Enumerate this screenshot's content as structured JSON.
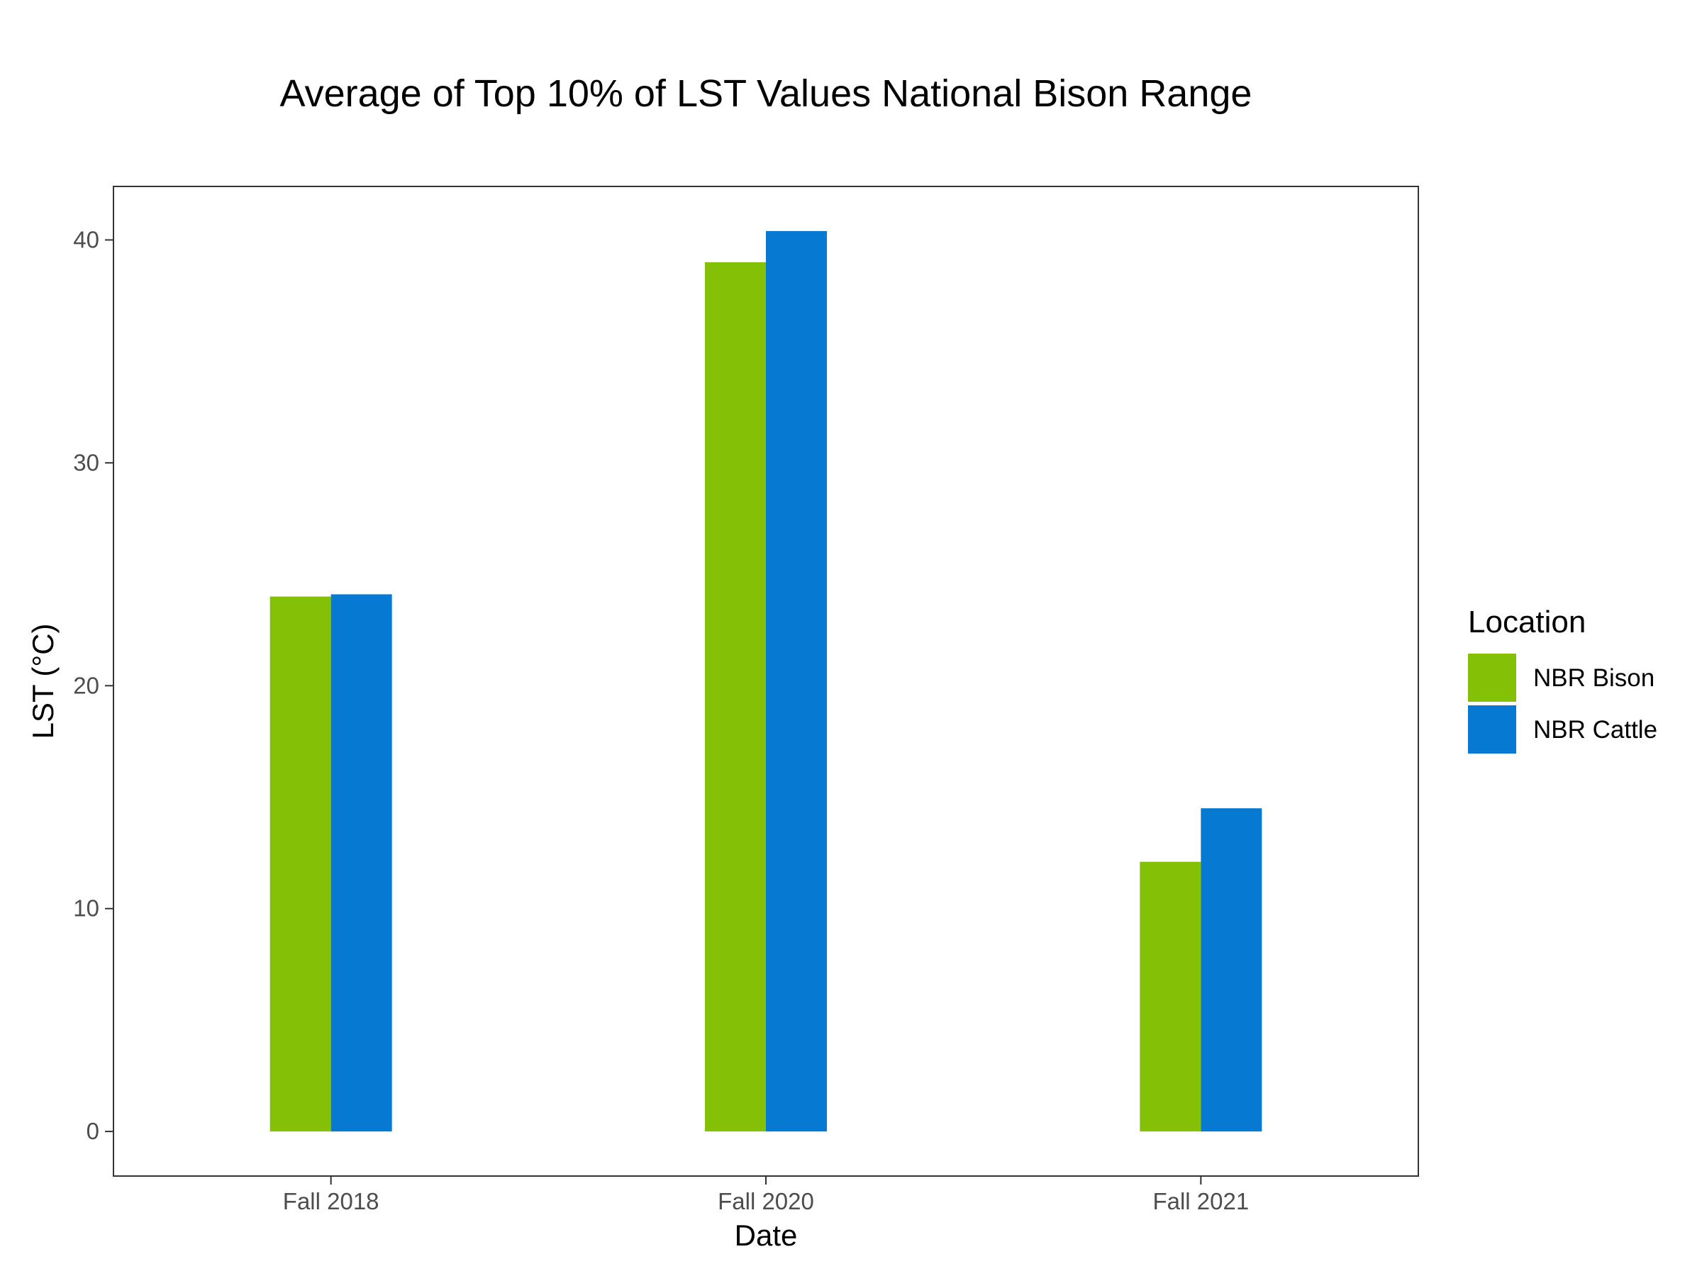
{
  "chart_data": {
    "type": "bar",
    "title": "Average of Top 10% of LST Values National Bison Range",
    "xlabel": "Date",
    "ylabel": "LST (°C)",
    "categories": [
      "Fall 2018",
      "Fall 2020",
      "Fall 2021"
    ],
    "series": [
      {
        "name": "NBR Bison",
        "color": "#84C106",
        "values": [
          24.0,
          39.0,
          12.1
        ]
      },
      {
        "name": "NBR Cattle",
        "color": "#067AD2",
        "values": [
          24.1,
          40.4,
          14.5
        ]
      }
    ],
    "ylim": [
      -2.0,
      42.4
    ],
    "yticks": [
      0,
      10,
      20,
      30,
      40
    ],
    "grid": false,
    "legend": {
      "title": "Location",
      "position": "right"
    }
  }
}
